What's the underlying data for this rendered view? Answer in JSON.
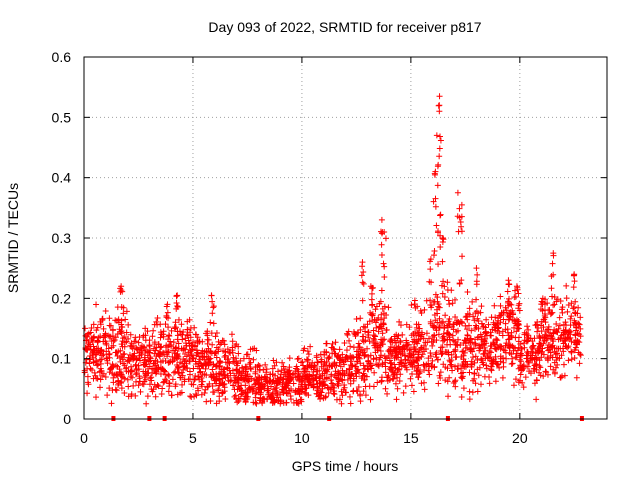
{
  "chart_data": {
    "type": "scatter",
    "title": "Day 093 of 2022, SRMTID for receiver p817",
    "xlabel": "GPS time / hours",
    "ylabel": "SRMTID / TECUs",
    "xlim": [
      0,
      24
    ],
    "ylim": [
      0,
      0.6
    ],
    "xticks": [
      0,
      5,
      10,
      15,
      20
    ],
    "yticks": [
      0,
      0.1,
      0.2,
      0.3,
      0.4,
      0.5,
      0.6
    ],
    "xtick_labels": [
      "0",
      "5",
      "10",
      "15",
      "20"
    ],
    "ytick_labels": [
      "0",
      "0.1",
      "0.2",
      "0.3",
      "0.4",
      "0.5",
      "0.6"
    ],
    "grid": true,
    "marker": "+",
    "series_color": "#ff0000",
    "segments": [
      {
        "x0": 0.0,
        "x1": 1.0,
        "base": 0.11,
        "spread": 0.035
      },
      {
        "x0": 1.0,
        "x1": 2.0,
        "base": 0.105,
        "spread": 0.04
      },
      {
        "x0": 2.0,
        "x1": 3.0,
        "base": 0.095,
        "spread": 0.035
      },
      {
        "x0": 3.0,
        "x1": 4.0,
        "base": 0.1,
        "spread": 0.04
      },
      {
        "x0": 4.0,
        "x1": 5.0,
        "base": 0.1,
        "spread": 0.04
      },
      {
        "x0": 5.0,
        "x1": 6.0,
        "base": 0.095,
        "spread": 0.035
      },
      {
        "x0": 6.0,
        "x1": 7.0,
        "base": 0.085,
        "spread": 0.035
      },
      {
        "x0": 7.0,
        "x1": 8.0,
        "base": 0.065,
        "spread": 0.03
      },
      {
        "x0": 8.0,
        "x1": 9.0,
        "base": 0.055,
        "spread": 0.025
      },
      {
        "x0": 9.0,
        "x1": 10.0,
        "base": 0.06,
        "spread": 0.025
      },
      {
        "x0": 10.0,
        "x1": 11.0,
        "base": 0.07,
        "spread": 0.025
      },
      {
        "x0": 11.0,
        "x1": 12.0,
        "base": 0.075,
        "spread": 0.03
      },
      {
        "x0": 12.0,
        "x1": 13.0,
        "base": 0.1,
        "spread": 0.04
      },
      {
        "x0": 13.0,
        "x1": 14.0,
        "base": 0.12,
        "spread": 0.05
      },
      {
        "x0": 14.0,
        "x1": 15.0,
        "base": 0.1,
        "spread": 0.035
      },
      {
        "x0": 15.0,
        "x1": 16.0,
        "base": 0.11,
        "spread": 0.04
      },
      {
        "x0": 16.0,
        "x1": 17.0,
        "base": 0.13,
        "spread": 0.05
      },
      {
        "x0": 17.0,
        "x1": 18.0,
        "base": 0.12,
        "spread": 0.045
      },
      {
        "x0": 18.0,
        "x1": 19.0,
        "base": 0.125,
        "spread": 0.04
      },
      {
        "x0": 19.0,
        "x1": 20.0,
        "base": 0.14,
        "spread": 0.045
      },
      {
        "x0": 20.0,
        "x1": 21.0,
        "base": 0.11,
        "spread": 0.035
      },
      {
        "x0": 21.0,
        "x1": 22.0,
        "base": 0.13,
        "spread": 0.04
      },
      {
        "x0": 22.0,
        "x1": 22.8,
        "base": 0.14,
        "spread": 0.04
      }
    ],
    "peaks": [
      {
        "x": 1.7,
        "y": 0.22
      },
      {
        "x": 3.8,
        "y": 0.19
      },
      {
        "x": 4.3,
        "y": 0.205
      },
      {
        "x": 5.9,
        "y": 0.205
      },
      {
        "x": 12.8,
        "y": 0.26
      },
      {
        "x": 13.2,
        "y": 0.22
      },
      {
        "x": 13.65,
        "y": 0.33
      },
      {
        "x": 13.8,
        "y": 0.31
      },
      {
        "x": 15.9,
        "y": 0.265
      },
      {
        "x": 16.1,
        "y": 0.41
      },
      {
        "x": 16.2,
        "y": 0.47
      },
      {
        "x": 16.3,
        "y": 0.535
      },
      {
        "x": 16.35,
        "y": 0.52
      },
      {
        "x": 16.5,
        "y": 0.3
      },
      {
        "x": 17.2,
        "y": 0.375
      },
      {
        "x": 17.3,
        "y": 0.355
      },
      {
        "x": 18.0,
        "y": 0.25
      },
      {
        "x": 19.5,
        "y": 0.23
      },
      {
        "x": 19.9,
        "y": 0.22
      },
      {
        "x": 21.0,
        "y": 0.2
      },
      {
        "x": 21.5,
        "y": 0.275
      },
      {
        "x": 22.5,
        "y": 0.24
      }
    ],
    "zero_markers": [
      1.35,
      3.0,
      3.7,
      8.0,
      11.25,
      16.7,
      22.85
    ]
  }
}
